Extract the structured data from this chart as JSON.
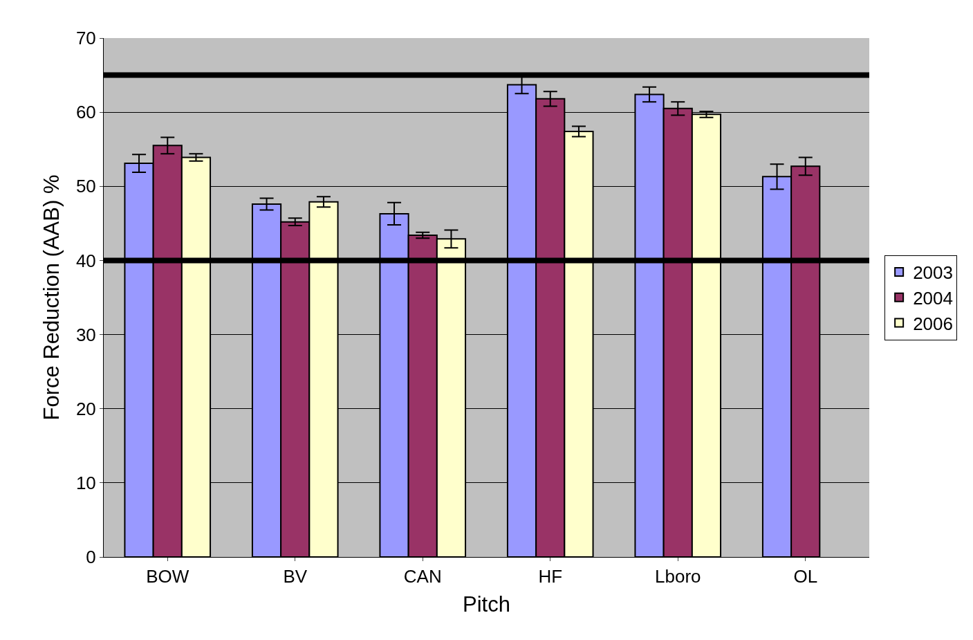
{
  "chart_data": {
    "type": "bar",
    "xlabel": "Pitch",
    "ylabel": "Force Reduction (AAB) %",
    "categories": [
      "BOW",
      "BV",
      "CAN",
      "HF",
      "Lboro",
      "OL"
    ],
    "series": [
      {
        "name": "2003",
        "color": "#9999ff",
        "values": [
          53.1,
          47.6,
          46.3,
          63.7,
          62.4,
          51.3
        ],
        "errors": [
          1.2,
          0.8,
          1.5,
          1.2,
          1.0,
          1.7
        ]
      },
      {
        "name": "2004",
        "color": "#993366",
        "values": [
          55.5,
          45.2,
          43.4,
          61.8,
          60.5,
          52.7
        ],
        "errors": [
          1.1,
          0.5,
          0.4,
          1.0,
          0.9,
          1.2
        ]
      },
      {
        "name": "2006",
        "color": "#ffffcc",
        "values": [
          53.9,
          47.9,
          42.9,
          57.4,
          59.7,
          null
        ],
        "errors": [
          0.5,
          0.7,
          1.2,
          0.7,
          0.4,
          null
        ]
      }
    ],
    "ylim": [
      0,
      70
    ],
    "yticks": [
      0,
      10,
      20,
      30,
      40,
      50,
      60,
      70
    ],
    "grid": "y",
    "legend": "right",
    "ref_lines": [
      {
        "axis": "y",
        "value": 65,
        "color": "#000000"
      },
      {
        "axis": "y",
        "value": 40,
        "color": "#000000"
      }
    ]
  }
}
